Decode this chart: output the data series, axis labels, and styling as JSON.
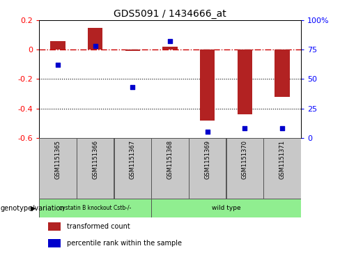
{
  "title": "GDS5091 / 1434666_at",
  "samples": [
    "GSM1151365",
    "GSM1151366",
    "GSM1151367",
    "GSM1151368",
    "GSM1151369",
    "GSM1151370",
    "GSM1151371"
  ],
  "transformed_counts": [
    0.06,
    0.15,
    -0.01,
    0.02,
    -0.48,
    -0.44,
    -0.32
  ],
  "percentile_ranks": [
    62,
    78,
    43,
    82,
    5,
    8,
    8
  ],
  "ylim_left": [
    -0.6,
    0.2
  ],
  "ylim_right": [
    0,
    100
  ],
  "bar_color": "#b22222",
  "dot_color": "#0000cc",
  "group1_label": "cystatin B knockout Cstb-/-",
  "group2_label": "wild type",
  "group1_count": 3,
  "group2_count": 4,
  "group_color": "#90ee90",
  "genotype_label": "genotype/variation",
  "legend_bar_label": "transformed count",
  "legend_dot_label": "percentile rank within the sample",
  "hline_color": "#cc0000",
  "dotted_line_values": [
    -0.2,
    -0.4
  ],
  "left_yticks": [
    -0.6,
    -0.4,
    -0.2,
    0.0,
    0.2
  ],
  "left_yticklabels": [
    "-0.6",
    "-0.4",
    "-0.2",
    "0",
    "0.2"
  ],
  "right_yticks": [
    0,
    25,
    50,
    75,
    100
  ],
  "right_yticklabels": [
    "0",
    "25",
    "50",
    "75",
    "100%"
  ],
  "background_color": "#ffffff",
  "bar_width": 0.4,
  "dot_size": 18
}
